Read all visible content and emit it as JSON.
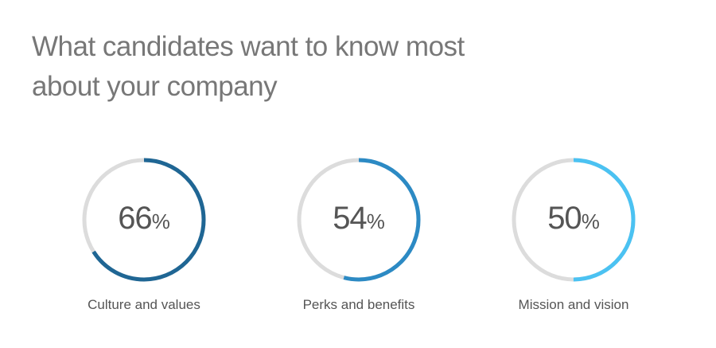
{
  "title_lines": [
    "What candidates want to know most",
    "about your company"
  ],
  "chart_data": {
    "type": "donut",
    "unit": "%",
    "track_color": "#dcdcdc",
    "items": [
      {
        "label": "Culture and values",
        "value": 66,
        "color": "#1f6694"
      },
      {
        "label": "Perks and benefits",
        "value": 54,
        "color": "#2c8ac4"
      },
      {
        "label": "Mission and vision",
        "value": 50,
        "color": "#4bc2f2"
      }
    ]
  }
}
